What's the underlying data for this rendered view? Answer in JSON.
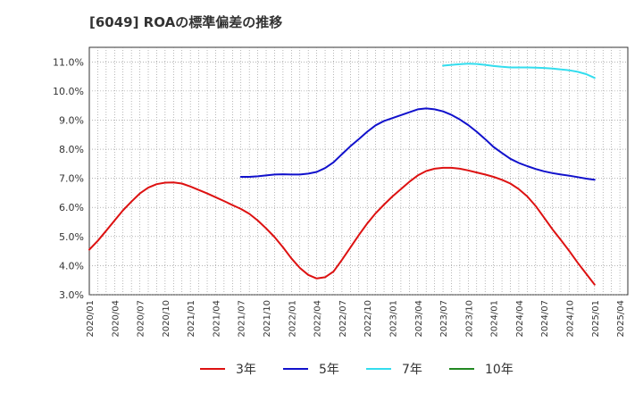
{
  "chart_data": {
    "type": "line",
    "title": "[6049]  ROAの標準偏差の推移",
    "xlabel": "",
    "ylabel": "",
    "ylim": [
      3.0,
      11.5
    ],
    "yticks": [
      "3.0%",
      "4.0%",
      "5.0%",
      "6.0%",
      "7.0%",
      "8.0%",
      "9.0%",
      "10.0%",
      "11.0%"
    ],
    "ytick_values": [
      3,
      4,
      5,
      6,
      7,
      8,
      9,
      10,
      11
    ],
    "xticks": [
      "2020/01",
      "2020/04",
      "2020/07",
      "2020/10",
      "2021/01",
      "2021/04",
      "2021/07",
      "2021/10",
      "2022/01",
      "2022/04",
      "2022/07",
      "2022/10",
      "2023/01",
      "2023/04",
      "2023/07",
      "2023/10",
      "2024/01",
      "2024/04",
      "2024/07",
      "2024/10",
      "2025/01",
      "2025/04"
    ],
    "grid": true,
    "legend_position": "bottom",
    "colors": {
      "3年": "#dd1111",
      "5年": "#1111cc",
      "7年": "#33ddee",
      "10年": "#228822"
    },
    "series": [
      {
        "name": "3年",
        "x": [
          "2020/01",
          "2020/02",
          "2020/03",
          "2020/04",
          "2020/05",
          "2020/06",
          "2020/07",
          "2020/08",
          "2020/09",
          "2020/10",
          "2020/11",
          "2020/12",
          "2021/01",
          "2021/02",
          "2021/03",
          "2021/04",
          "2021/05",
          "2021/06",
          "2021/07",
          "2021/08",
          "2021/09",
          "2021/10",
          "2021/11",
          "2021/12",
          "2022/01",
          "2022/02",
          "2022/03",
          "2022/04",
          "2022/05",
          "2022/06",
          "2022/07",
          "2022/08",
          "2022/09",
          "2022/10",
          "2022/11",
          "2022/12",
          "2023/01",
          "2023/02",
          "2023/03",
          "2023/04",
          "2023/05",
          "2023/06",
          "2023/07",
          "2023/08",
          "2023/09",
          "2023/10",
          "2023/11",
          "2023/12",
          "2024/01",
          "2024/02",
          "2024/03",
          "2024/04",
          "2024/05",
          "2024/06",
          "2024/07",
          "2024/08",
          "2024/09",
          "2024/10",
          "2024/11",
          "2024/12",
          "2025/01"
        ],
        "values": [
          4.55,
          4.85,
          5.2,
          5.55,
          5.9,
          6.2,
          6.48,
          6.68,
          6.8,
          6.85,
          6.86,
          6.82,
          6.72,
          6.6,
          6.48,
          6.35,
          6.22,
          6.08,
          5.95,
          5.78,
          5.55,
          5.28,
          4.98,
          4.63,
          4.25,
          3.92,
          3.68,
          3.56,
          3.6,
          3.8,
          4.2,
          4.62,
          5.05,
          5.45,
          5.8,
          6.1,
          6.38,
          6.63,
          6.88,
          7.1,
          7.25,
          7.33,
          7.36,
          7.36,
          7.33,
          7.27,
          7.2,
          7.13,
          7.05,
          6.95,
          6.82,
          6.63,
          6.38,
          6.05,
          5.65,
          5.25,
          4.88,
          4.5,
          4.1,
          3.72,
          3.35
        ]
      },
      {
        "name": "5年",
        "x": [
          "2021/07",
          "2021/08",
          "2021/09",
          "2021/10",
          "2021/11",
          "2021/12",
          "2022/01",
          "2022/02",
          "2022/03",
          "2022/04",
          "2022/05",
          "2022/06",
          "2022/07",
          "2022/08",
          "2022/09",
          "2022/10",
          "2022/11",
          "2022/12",
          "2023/01",
          "2023/02",
          "2023/03",
          "2023/04",
          "2023/05",
          "2023/06",
          "2023/07",
          "2023/08",
          "2023/09",
          "2023/10",
          "2023/11",
          "2023/12",
          "2024/01",
          "2024/02",
          "2024/03",
          "2024/04",
          "2024/05",
          "2024/06",
          "2024/07",
          "2024/08",
          "2024/09",
          "2024/10",
          "2024/11",
          "2024/12",
          "2025/01"
        ],
        "values": [
          7.05,
          7.05,
          7.07,
          7.1,
          7.13,
          7.14,
          7.13,
          7.13,
          7.16,
          7.22,
          7.35,
          7.55,
          7.83,
          8.1,
          8.35,
          8.6,
          8.82,
          8.97,
          9.07,
          9.17,
          9.27,
          9.37,
          9.4,
          9.37,
          9.3,
          9.18,
          9.02,
          8.83,
          8.6,
          8.35,
          8.08,
          7.87,
          7.67,
          7.53,
          7.42,
          7.32,
          7.24,
          7.18,
          7.13,
          7.09,
          7.04,
          6.99,
          6.95
        ]
      },
      {
        "name": "7年",
        "x": [
          "2023/07",
          "2023/08",
          "2023/09",
          "2023/10",
          "2023/11",
          "2023/12",
          "2024/01",
          "2024/02",
          "2024/03",
          "2024/04",
          "2024/05",
          "2024/06",
          "2024/07",
          "2024/08",
          "2024/09",
          "2024/10",
          "2024/11",
          "2024/12",
          "2025/01"
        ],
        "values": [
          10.87,
          10.9,
          10.92,
          10.94,
          10.93,
          10.9,
          10.86,
          10.83,
          10.81,
          10.81,
          10.81,
          10.8,
          10.79,
          10.77,
          10.74,
          10.71,
          10.66,
          10.58,
          10.45
        ]
      },
      {
        "name": "10年",
        "x": [],
        "values": []
      }
    ]
  }
}
